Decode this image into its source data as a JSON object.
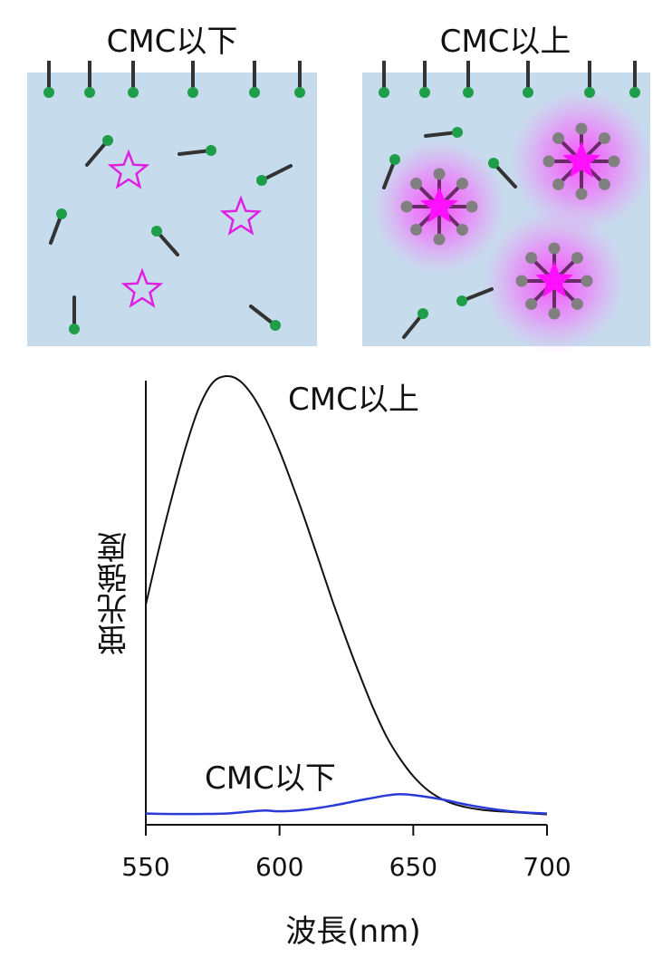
{
  "panels": {
    "left_title": "CMC以下",
    "right_title": "CMC以上"
  },
  "colors": {
    "water": "#c6dced",
    "head": "#1f9e4a",
    "tail": "#333333",
    "star": "#e020e0",
    "micelle_head": "#808080",
    "micelle_tail": "#6a2a6a",
    "glow": "#ff44ff",
    "above_curve": "#111111",
    "below_curve": "#2a3ad8"
  },
  "chart_data": {
    "type": "line",
    "xlabel": "波長(nm)",
    "ylabel": "蛍光強度",
    "xlim": [
      550,
      700
    ],
    "xticks": [
      550,
      600,
      650,
      700
    ],
    "ylim": [
      0,
      100
    ],
    "series": [
      {
        "name": "CMC以上",
        "x": [
          550,
          555,
          560,
          565,
          570,
          575,
          580,
          585,
          590,
          595,
          600,
          605,
          610,
          615,
          620,
          625,
          630,
          635,
          640,
          645,
          650,
          655,
          660,
          665,
          670,
          675,
          680,
          685,
          690,
          695,
          700
        ],
        "y": [
          48,
          61,
          73,
          84,
          93,
          98.5,
          100,
          99,
          95.5,
          90,
          83,
          75,
          66.5,
          57.5,
          48.5,
          40,
          32,
          24.5,
          18,
          13,
          9,
          6,
          4,
          2.7,
          1.9,
          1.4,
          1.1,
          0.9,
          0.7,
          0.5,
          0.3
        ]
      },
      {
        "name": "CMC以下",
        "x": [
          550,
          560,
          570,
          580,
          590,
          595,
          600,
          610,
          620,
          630,
          640,
          645,
          650,
          660,
          670,
          680,
          690,
          700
        ],
        "y": [
          0.5,
          0.4,
          0.4,
          0.5,
          1.0,
          1.2,
          1.0,
          1.4,
          2.3,
          3.5,
          4.6,
          4.9,
          4.7,
          3.8,
          2.5,
          1.5,
          0.8,
          0.5
        ]
      }
    ],
    "annotations": [
      "CMC以上",
      "CMC以下"
    ]
  }
}
